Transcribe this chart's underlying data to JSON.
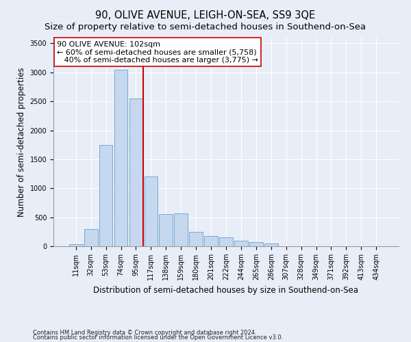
{
  "title": "90, OLIVE AVENUE, LEIGH-ON-SEA, SS9 3QE",
  "subtitle": "Size of property relative to semi-detached houses in Southend-on-Sea",
  "xlabel": "Distribution of semi-detached houses by size in Southend-on-Sea",
  "ylabel": "Number of semi-detached properties",
  "footnote1": "Contains HM Land Registry data © Crown copyright and database right 2024.",
  "footnote2": "Contains public sector information licensed under the Open Government Licence v3.0.",
  "bar_labels": [
    "11sqm",
    "32sqm",
    "53sqm",
    "74sqm",
    "95sqm",
    "117sqm",
    "138sqm",
    "159sqm",
    "180sqm",
    "201sqm",
    "222sqm",
    "244sqm",
    "265sqm",
    "286sqm",
    "307sqm",
    "328sqm",
    "349sqm",
    "371sqm",
    "392sqm",
    "413sqm",
    "434sqm"
  ],
  "bar_values": [
    30,
    300,
    1750,
    3050,
    2550,
    1200,
    560,
    565,
    250,
    175,
    150,
    100,
    75,
    50,
    0,
    0,
    0,
    0,
    0,
    0,
    0
  ],
  "bar_color": "#c5d8ef",
  "bar_edge_color": "#6a9fc8",
  "vline_color": "#cc0000",
  "vline_x": 4.5,
  "annotation_line1": "90 OLIVE AVENUE: 102sqm",
  "annotation_line2": "← 60% of semi-detached houses are smaller (5,758)",
  "annotation_line3": "   40% of semi-detached houses are larger (3,775) →",
  "annotation_box_color": "#ffffff",
  "annotation_box_edge": "#cc0000",
  "background_color": "#e8eef8",
  "ylim": [
    0,
    3600
  ],
  "yticks": [
    0,
    500,
    1000,
    1500,
    2000,
    2500,
    3000,
    3500
  ],
  "title_fontsize": 10.5,
  "subtitle_fontsize": 9.5,
  "ylabel_fontsize": 8.5,
  "xlabel_fontsize": 8.5,
  "tick_fontsize": 7,
  "annotation_fontsize": 8,
  "footnote_fontsize": 6
}
